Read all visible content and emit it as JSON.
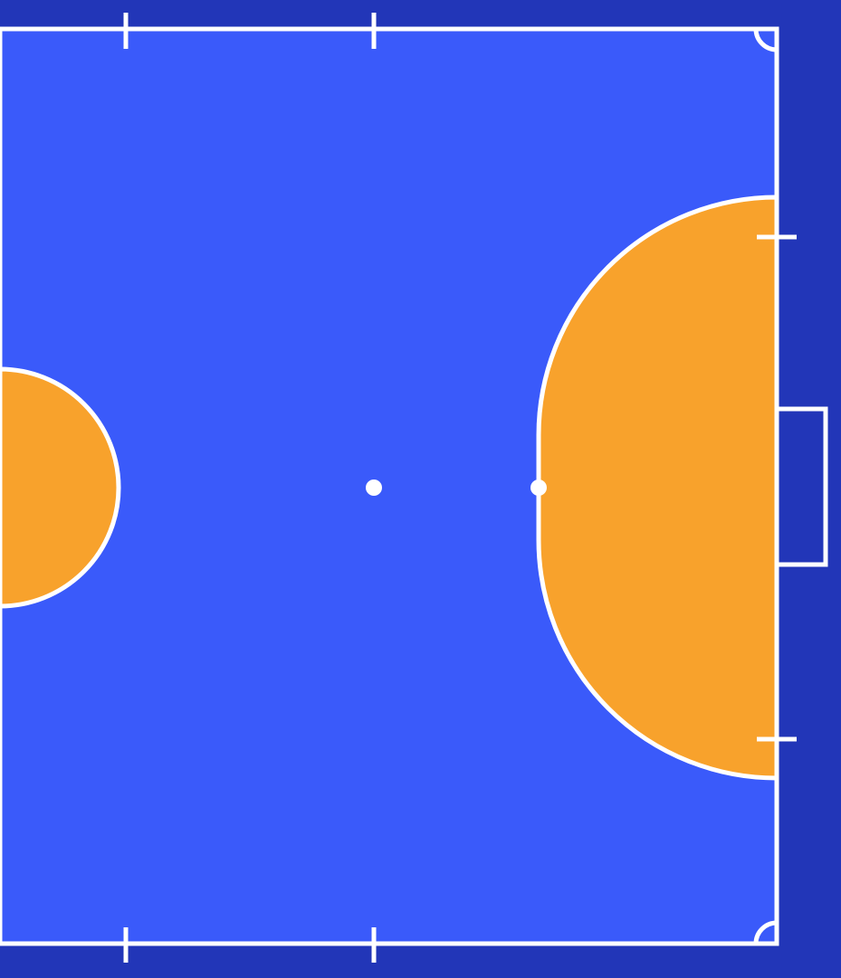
{
  "court": {
    "type": "futsal half court",
    "colors": {
      "surround": "#2236b8",
      "playing_surface": "#3a5afa",
      "penalty_area": "#f8a22c",
      "lines": "#ffffff"
    }
  }
}
